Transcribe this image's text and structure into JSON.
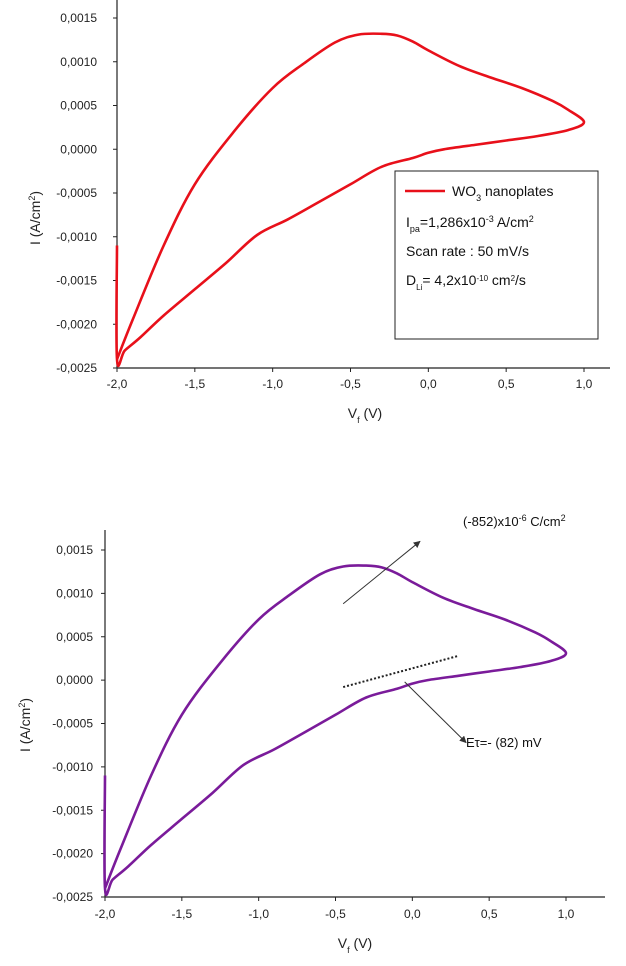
{
  "chart_data": [
    {
      "type": "line",
      "xlabel": "Vf (V)",
      "xlabel_main": "V",
      "xlabel_sub": "f",
      "xlabel_tail": " (V)",
      "ylabel": "I (A/cm2)",
      "ylabel_main": "I (A/cm",
      "ylabel_sup": "2",
      "ylabel_tail": ")",
      "xlim": [
        -2.0,
        1.25
      ],
      "ylim": [
        -0.0025,
        0.0017
      ],
      "x_ticks": [
        -2.0,
        -1.5,
        -1.0,
        -0.5,
        0.0,
        0.5,
        1.0
      ],
      "x_tick_labels": [
        "-2,0",
        "-1,5",
        "-1,0",
        "-0,5",
        "0,0",
        "0,5",
        "1,0"
      ],
      "y_ticks": [
        -0.0025,
        -0.002,
        -0.0015,
        -0.001,
        -0.0005,
        0.0,
        0.0005,
        0.001,
        0.0015
      ],
      "y_tick_labels": [
        "-0,0025",
        "-0,0020",
        "-0,0015",
        "-0,0010",
        "-0,0005",
        "0,0000",
        "0,0005",
        "0,0010",
        "0,0015"
      ],
      "color": "#e8101a",
      "series": [
        {
          "name": "WO3 nanoplates",
          "x": [
            -2.0,
            -1.9,
            -1.7,
            -1.5,
            -1.25,
            -1.0,
            -0.8,
            -0.6,
            -0.45,
            -0.3,
            -0.2,
            -0.1,
            0.0,
            0.2,
            0.4,
            0.6,
            0.8,
            0.9,
            1.0,
            0.9,
            0.7,
            0.5,
            0.3,
            0.1,
            0.0,
            -0.1,
            -0.3,
            -0.5,
            -0.7,
            -0.9,
            -1.1,
            -1.3,
            -1.5,
            -1.7,
            -1.85,
            -1.95,
            -2.0,
            -2.0
          ],
          "y": [
            -0.0024,
            -0.00195,
            -0.0011,
            -0.0004,
            0.0002,
            0.0007,
            0.00098,
            0.00122,
            0.00131,
            0.00132,
            0.0013,
            0.00123,
            0.00113,
            0.00095,
            0.00082,
            0.0007,
            0.00055,
            0.00045,
            0.00031,
            0.00022,
            0.00015,
            0.0001,
            5e-05,
            0.0,
            -4e-05,
            -0.0001,
            -0.0002,
            -0.0004,
            -0.0006,
            -0.0008,
            -0.00098,
            -0.0013,
            -0.0016,
            -0.0019,
            -0.00215,
            -0.0023,
            -0.0024,
            -0.0011
          ]
        }
      ],
      "legend": {
        "placement": "lower-right",
        "series_name_main": "WO",
        "series_name_sub": "3",
        "series_name_tail": " nanoplates",
        "line1_main": "I",
        "line1_sub": "pa",
        "line1_mid": "=1,286x10",
        "line1_sup": "-3",
        "line1_tail": " A/cm",
        "line1_sup2": "2",
        "line2": "Scan rate : 50 mV/s",
        "line3_main": "D",
        "line3_sub": "Li",
        "line3_mid": "= 4,2x10",
        "line3_sup": "-10",
        "line3_tail": " cm",
        "line3_sup2": "2",
        "line3_end": "/s"
      }
    },
    {
      "type": "line",
      "xlabel": "Vf (V)",
      "xlabel_main": "V",
      "xlabel_sub": "f",
      "xlabel_tail": " (V)",
      "ylabel": "I (A/cm2)",
      "ylabel_main": "I (A/cm",
      "ylabel_sup": "2",
      "ylabel_tail": ")",
      "xlim": [
        -2.0,
        1.25
      ],
      "ylim": [
        -0.0025,
        0.0017
      ],
      "x_ticks": [
        -2.0,
        -1.5,
        -1.0,
        -0.5,
        0.0,
        0.5,
        1.0
      ],
      "x_tick_labels": [
        "-2,0",
        "-1,5",
        "-1,0",
        "-0,5",
        "0,0",
        "0,5",
        "1,0"
      ],
      "y_ticks": [
        -0.0025,
        -0.002,
        -0.0015,
        -0.001,
        -0.0005,
        0.0,
        0.0005,
        0.001,
        0.0015
      ],
      "y_tick_labels": [
        "-0,0025",
        "-0,0020",
        "-0,0015",
        "-0,0010",
        "-0,0005",
        "0,0000",
        "0,0005",
        "0,0010",
        "0,0015"
      ],
      "color": "#7a1b9a",
      "series": [
        {
          "x": [
            -2.0,
            -1.9,
            -1.7,
            -1.5,
            -1.25,
            -1.0,
            -0.8,
            -0.6,
            -0.45,
            -0.3,
            -0.2,
            -0.1,
            0.0,
            0.2,
            0.4,
            0.6,
            0.8,
            0.9,
            1.0,
            0.9,
            0.7,
            0.5,
            0.3,
            0.1,
            0.0,
            -0.1,
            -0.3,
            -0.5,
            -0.7,
            -0.9,
            -1.1,
            -1.3,
            -1.5,
            -1.7,
            -1.85,
            -1.95,
            -2.0,
            -2.0
          ],
          "y": [
            -0.0024,
            -0.00195,
            -0.0011,
            -0.0004,
            0.0002,
            0.0007,
            0.00098,
            0.00122,
            0.00131,
            0.00132,
            0.0013,
            0.00123,
            0.00113,
            0.00095,
            0.00082,
            0.0007,
            0.00055,
            0.00045,
            0.00031,
            0.00022,
            0.00015,
            0.0001,
            5e-05,
            0.0,
            -4e-05,
            -0.0001,
            -0.0002,
            -0.0004,
            -0.0006,
            -0.0008,
            -0.00098,
            -0.0013,
            -0.0016,
            -0.0019,
            -0.00215,
            -0.0023,
            -0.0024,
            -0.0011
          ]
        }
      ],
      "tangent_line": {
        "x": [
          -0.45,
          0.3
        ],
        "y": [
          -8e-05,
          0.00028
        ]
      },
      "annotations": [
        {
          "text": "(-852)x10-6 C/cm2",
          "main": "(-852)x10",
          "sup": "-6",
          "tail": " C/cm",
          "sup2": "2",
          "placement": "top-right",
          "arrow_from": [
            -0.45,
            0.00088
          ],
          "arrow_to": [
            0.05,
            0.0016
          ]
        },
        {
          "text": "Eτ=- (82) mV",
          "placement": "center-right",
          "arrow_from": [
            -0.05,
            -2e-05
          ],
          "arrow_to": [
            0.35,
            -0.00072
          ]
        }
      ]
    }
  ]
}
